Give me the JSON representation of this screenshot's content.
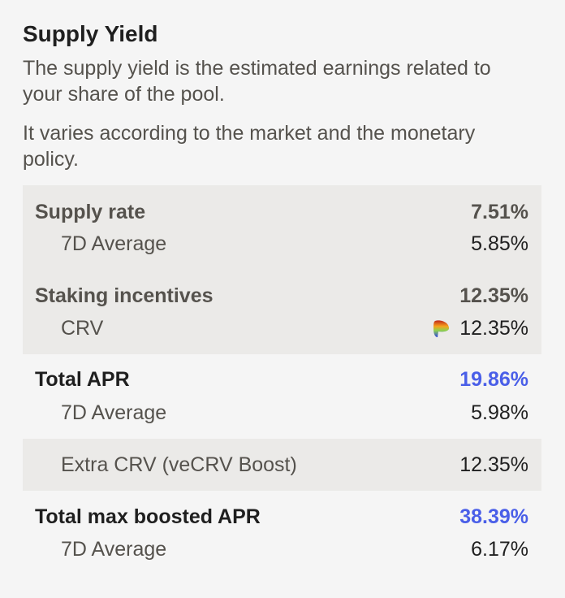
{
  "title": "Supply Yield",
  "description": [
    "The supply yield is the estimated earnings related to your share of the pool.",
    "It varies according to the market and the monetary policy."
  ],
  "supply_rate": {
    "label": "Supply rate",
    "value": "7.51%",
    "avg_label": "7D Average",
    "avg_value": "5.85%"
  },
  "staking": {
    "label": "Staking incentives",
    "value": "12.35%",
    "token_label": "CRV",
    "token_icon": "curve-logo-icon",
    "token_value": "12.35%"
  },
  "total_apr": {
    "label": "Total APR",
    "value": "19.86%",
    "avg_label": "7D Average",
    "avg_value": "5.98%"
  },
  "extra": {
    "label": "Extra CRV (veCRV Boost)",
    "value": "12.35%"
  },
  "max_apr": {
    "label": "Total max boosted APR",
    "value": "38.39%",
    "avg_label": "7D Average",
    "avg_value": "6.17%"
  },
  "colors": {
    "accent": "#4a5fe8",
    "panel": "#ebeae8",
    "background": "#f5f5f5"
  }
}
